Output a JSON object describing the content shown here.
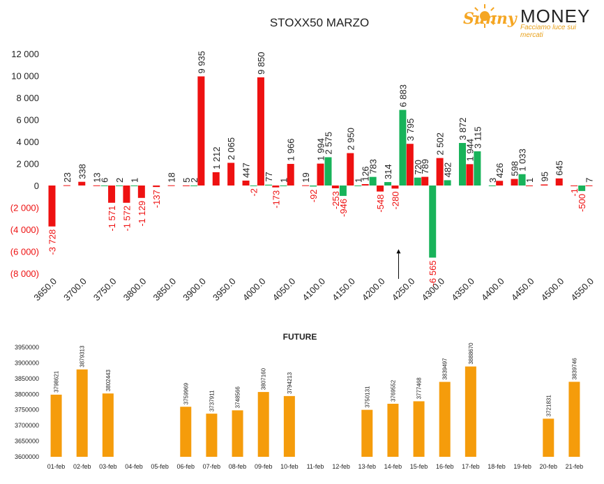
{
  "logo": {
    "brand_part1": "Sunny",
    "brand_part2": "MONEY",
    "tagline": "Facciamo luce sui mercati",
    "colors": {
      "sun": "#f5a623",
      "brand_text": "#222222",
      "tagline": "#e8a11c"
    }
  },
  "chart_data": [
    {
      "type": "bar",
      "title": "STOXX50 MARZO",
      "xlabel": "",
      "ylabel": "",
      "ylim": [
        -8000,
        12000
      ],
      "yticks": [
        {
          "value": 12000,
          "label": "12 000"
        },
        {
          "value": 10000,
          "label": "10 000"
        },
        {
          "value": 8000,
          "label": "8 000"
        },
        {
          "value": 6000,
          "label": "6 000"
        },
        {
          "value": 4000,
          "label": "4 000"
        },
        {
          "value": 2000,
          "label": "2 000"
        },
        {
          "value": 0,
          "label": "0"
        },
        {
          "value": -2000,
          "label": "(2 000)"
        },
        {
          "value": -4000,
          "label": "(4 000)"
        },
        {
          "value": -6000,
          "label": "(6 000)"
        },
        {
          "value": -8000,
          "label": "(8 000)"
        }
      ],
      "grid": false,
      "legend": "none",
      "colors": {
        "put": "#ee1111",
        "call": "#18b35a",
        "axis_text": "#222222",
        "neg_label": "#ee1111"
      },
      "categories": [
        "3650.0",
        "3675.0",
        "3700.0",
        "3725.0",
        "3750.0",
        "3775.0",
        "3800.0",
        "3825.0",
        "3850.0",
        "3875.0",
        "3900.0",
        "3925.0",
        "3950.0",
        "3975.0",
        "4000.0",
        "4025.0",
        "4050.0",
        "4075.0",
        "4100.0",
        "4125.0",
        "4150.0",
        "4175.0",
        "4200.0",
        "4225.0",
        "4250.0",
        "4275.0",
        "4300.0",
        "4325.0",
        "4350.0",
        "4375.0",
        "4400.0",
        "4425.0",
        "4450.0",
        "4475.0",
        "4500.0",
        "4525.0",
        "4550.0"
      ],
      "category_labels_shown": [
        0,
        2,
        4,
        6,
        8,
        10,
        12,
        14,
        16,
        18,
        20,
        22,
        24,
        26,
        28,
        30,
        32,
        34,
        36
      ],
      "series": [
        {
          "key": "put",
          "color": "#ee1111",
          "values": [
            -3728,
            23,
            338,
            13,
            -1571,
            -1572,
            -1129,
            -137,
            18,
            5,
            9935,
            1212,
            2065,
            447,
            9850,
            -173,
            1966,
            19,
            1994,
            -253,
            2950,
            126,
            -548,
            -280,
            3795,
            789,
            2502,
            null,
            1944,
            null,
            426,
            598,
            1,
            95,
            645,
            -1,
            7
          ],
          "labels": [
            "-3 728",
            "23",
            "338",
            "13",
            "-1 571",
            "-1 572",
            "-1 129",
            "-137",
            "18",
            "5",
            "9 935",
            "1 212",
            "2 065",
            "447",
            "9 850",
            "-173",
            "1 966",
            "19",
            "1 994",
            "-253",
            "2 950",
            "126",
            "-548",
            "-280",
            "3 795",
            "789",
            "2 502",
            "",
            "1 944",
            "",
            "426",
            "598",
            "1",
            "95",
            "645",
            "-1",
            "7"
          ]
        },
        {
          "key": "call",
          "color": "#18b35a",
          "values": [
            null,
            null,
            null,
            6,
            2,
            1,
            null,
            null,
            null,
            2,
            null,
            null,
            null,
            -2,
            77,
            1,
            null,
            -92,
            2575,
            -946,
            1,
            783,
            314,
            6883,
            720,
            -6565,
            482,
            3872,
            3115,
            3,
            null,
            1033,
            null,
            null,
            null,
            -500,
            null
          ],
          "labels": [
            "",
            "",
            "",
            "6",
            "2",
            "1",
            "",
            "",
            "",
            "2",
            "",
            "",
            "",
            "-2",
            "77",
            "1",
            "",
            "-92",
            "2 575",
            "-946",
            "1",
            "783",
            "314",
            "6 883",
            "720",
            "-6 565",
            "482",
            "3 872",
            "3 115",
            "3",
            "",
            "1 033",
            "",
            "",
            "",
            "-500",
            ""
          ]
        }
      ],
      "annotation": {
        "type": "arrow",
        "at_category": "4225.0",
        "from_value": -8500,
        "to_value": -5800
      }
    },
    {
      "type": "bar",
      "title": "FUTURE",
      "xlabel": "",
      "ylabel": "",
      "ylim": [
        3600000,
        3950000
      ],
      "yticks": [
        3600000,
        3650000,
        3700000,
        3750000,
        3800000,
        3850000,
        3900000,
        3950000
      ],
      "grid": false,
      "legend": "none",
      "color": "#f59c0b",
      "categories": [
        "01-feb",
        "02-feb",
        "03-feb",
        "04-feb",
        "05-feb",
        "06-feb",
        "07-feb",
        "08-feb",
        "09-feb",
        "10-feb",
        "11-feb",
        "12-feb",
        "13-feb",
        "14-feb",
        "15-feb",
        "16-feb",
        "17-feb",
        "18-feb",
        "19-feb",
        "20-feb",
        "21-feb"
      ],
      "values": [
        3798621,
        3879313,
        3802443,
        null,
        null,
        3759969,
        3737911,
        3748566,
        3807160,
        3794213,
        null,
        null,
        3750131,
        3769552,
        3777468,
        3839497,
        3888670,
        null,
        null,
        3721831,
        3839746
      ]
    }
  ]
}
